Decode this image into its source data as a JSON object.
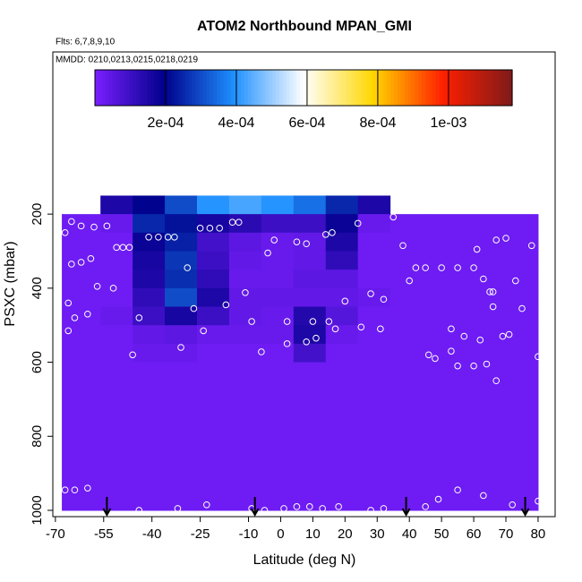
{
  "chart_data": {
    "type": "heatmap",
    "title": "ATOM2 Northbound MPAN_GMI",
    "subtitle": "Flts: 6,7,8,9,10",
    "annotation": "MMDD: 0210,0213,0215,0218,0219",
    "x_label": "Latitude (deg N)",
    "y_label": "PSXC (mbar)",
    "xlim": [
      -70.8,
      85.3
    ],
    "xticks": [
      -70,
      -55,
      -40,
      -25,
      -10,
      0,
      10,
      20,
      30,
      40,
      50,
      60,
      70,
      80
    ],
    "ylim": [
      1017,
      -238
    ],
    "yticks": [
      200,
      400,
      600,
      800,
      1000
    ],
    "x_bins": [
      -68,
      -56,
      -46,
      -36,
      -26,
      -16,
      -6,
      4,
      14,
      24,
      34,
      46,
      58,
      70,
      80
    ],
    "y_bins": [
      150,
      200,
      250,
      300,
      350,
      400,
      450,
      500,
      550,
      600,
      1000
    ],
    "values": [
      [
        null,
        0.00015,
        0.0002,
        0.0003,
        0.0004,
        0.00043,
        0.0004,
        0.00035,
        0.00025,
        0.00015,
        null,
        null,
        null,
        null
      ],
      [
        2e-05,
        3e-05,
        0.00025,
        0.00022,
        0.00016,
        0.00013,
        0.0001,
        0.0001,
        0.00018,
        3e-05,
        2e-05,
        2e-05,
        2e-05,
        2e-05
      ],
      [
        2e-05,
        2e-05,
        0.00018,
        0.00024,
        9e-05,
        5e-05,
        3e-05,
        4e-05,
        0.00015,
        2e-05,
        2e-05,
        2e-05,
        2e-05,
        2e-05
      ],
      [
        2e-05,
        2e-05,
        0.00016,
        0.00027,
        0.0001,
        4e-05,
        3e-05,
        4e-05,
        0.00012,
        2e-05,
        2e-05,
        2e-05,
        2e-05,
        2e-05
      ],
      [
        2e-05,
        2e-05,
        0.00015,
        0.00026,
        0.00012,
        3e-05,
        3e-05,
        5e-05,
        5e-05,
        2e-05,
        2e-05,
        2e-05,
        2e-05,
        2e-05
      ],
      [
        2e-05,
        2e-05,
        0.00012,
        0.0003,
        0.00015,
        4e-05,
        4e-05,
        4e-05,
        4e-05,
        3e-05,
        2e-05,
        2e-05,
        2e-05,
        2e-05
      ],
      [
        2e-05,
        3e-05,
        0.0001,
        0.00016,
        0.0001,
        4e-05,
        3e-05,
        0.00014,
        6e-05,
        2e-05,
        2e-05,
        2e-05,
        2e-05,
        2e-05
      ],
      [
        2e-05,
        2e-05,
        4e-05,
        5e-05,
        3e-05,
        3e-05,
        3e-05,
        0.00015,
        3e-05,
        2e-05,
        2e-05,
        2e-05,
        2e-05,
        2e-05
      ],
      [
        2e-05,
        2e-05,
        3e-05,
        3e-05,
        2e-05,
        2e-05,
        2e-05,
        9e-05,
        2e-05,
        2e-05,
        2e-05,
        2e-05,
        2e-05,
        2e-05
      ],
      [
        2e-05,
        2e-05,
        2e-05,
        2e-05,
        2e-05,
        2e-05,
        2e-05,
        2e-05,
        2e-05,
        2e-05,
        2e-05,
        2e-05,
        2e-05,
        2e-05
      ]
    ],
    "clim": [
      0,
      0.00118
    ],
    "colormap": [
      "#7b1fff",
      "#00008b",
      "#1e90ff",
      "#ffffff",
      "#ffd700",
      "#ff2000",
      "#7f1a1a"
    ],
    "colorbar_ticks": [
      {
        "value": 0.0002,
        "label": "2e-04"
      },
      {
        "value": 0.0004,
        "label": "4e-04"
      },
      {
        "value": 0.0006,
        "label": "6e-04"
      },
      {
        "value": 0.0008,
        "label": "8e-04"
      },
      {
        "value": 0.001,
        "label": "1e-03"
      }
    ],
    "points": {
      "color": "#ffffff",
      "x": [
        -67,
        -64,
        -60,
        -67,
        -65,
        -62,
        -58,
        -54,
        -65,
        -62,
        -59,
        -57,
        -52,
        -66,
        -64,
        -60,
        -66,
        -47,
        -49,
        -51,
        -44,
        -41,
        -38,
        -35,
        -33,
        -29,
        -27,
        -31,
        -25,
        -22,
        -19,
        -15,
        -13,
        -17,
        -11,
        -9,
        -24,
        -4,
        -2,
        2,
        5,
        8,
        -46,
        -6,
        2,
        8,
        10,
        11,
        14,
        16,
        15,
        17,
        20,
        24,
        25,
        28,
        31,
        32,
        35,
        38,
        40,
        42,
        45,
        50,
        55,
        60,
        65,
        66,
        66,
        67,
        61,
        63,
        70,
        73,
        75,
        78,
        80,
        71,
        69,
        62,
        57,
        53,
        55,
        60,
        67,
        64,
        48,
        46,
        53,
        -23,
        -32,
        -9,
        -5,
        1,
        5,
        9,
        13,
        18,
        28,
        32,
        45,
        49,
        55,
        63,
        72,
        80,
        -44
      ],
      "y": [
        945,
        945,
        940,
        250,
        220,
        232,
        235,
        232,
        335,
        330,
        320,
        395,
        400,
        440,
        480,
        470,
        515,
        290,
        290,
        290,
        480,
        262,
        262,
        262,
        262,
        345,
        455,
        560,
        238,
        238,
        238,
        222,
        222,
        445,
        412,
        490,
        515,
        305,
        270,
        490,
        275,
        280,
        580,
        572,
        550,
        545,
        490,
        535,
        255,
        250,
        490,
        510,
        435,
        225,
        505,
        415,
        510,
        430,
        208,
        285,
        380,
        345,
        345,
        345,
        345,
        345,
        410,
        410,
        450,
        270,
        295,
        375,
        265,
        380,
        455,
        285,
        585,
        525,
        530,
        540,
        530,
        570,
        610,
        610,
        650,
        605,
        590,
        580,
        510,
        985,
        995,
        995,
        1000,
        995,
        990,
        990,
        995,
        990,
        1000,
        995,
        990,
        970,
        945,
        960,
        985,
        975,
        1000
      ]
    },
    "arrows_x": [
      -54,
      -8,
      39,
      76
    ]
  }
}
